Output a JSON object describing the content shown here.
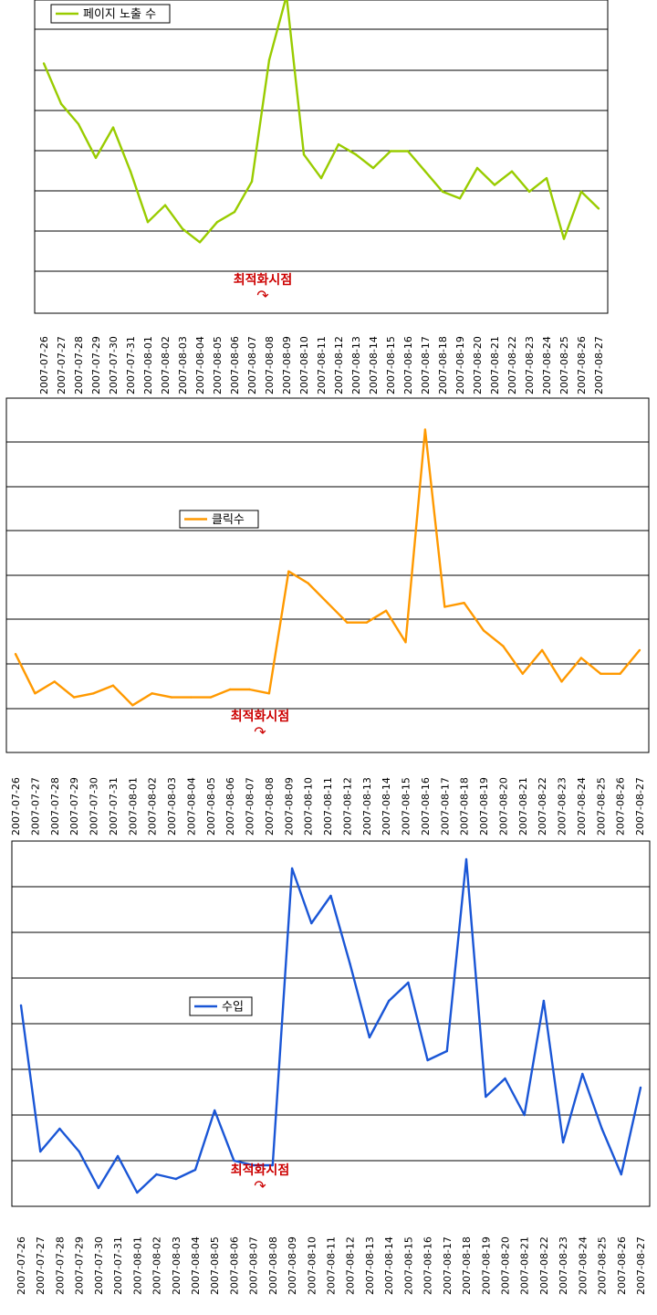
{
  "chart_data": [
    {
      "type": "line",
      "title": "",
      "xlabel": "",
      "ylabel": "",
      "grid": true,
      "legend_position": "top-left",
      "series": [
        {
          "name": "페이지 노출 수",
          "color": "#99cc00",
          "values": [
            7.4,
            6.2,
            5.6,
            4.6,
            5.5,
            4.2,
            2.7,
            3.2,
            2.5,
            2.1,
            2.7,
            3.0,
            3.9,
            7.5,
            9.4,
            4.7,
            4.0,
            5.0,
            4.7,
            4.3,
            4.8,
            4.8,
            4.2,
            3.6,
            3.4,
            4.3,
            3.8,
            4.2,
            3.6,
            4.0,
            2.2,
            3.6,
            3.1
          ]
        }
      ],
      "annotation": {
        "text": "최적화시점",
        "arrow": "↷",
        "at_category": "2007-08-08"
      },
      "categories": [
        "2007-07-26",
        "2007-07-27",
        "2007-07-28",
        "2007-07-29",
        "2007-07-30",
        "2007-07-31",
        "2007-08-01",
        "2007-08-02",
        "2007-08-03",
        "2007-08-04",
        "2007-08-05",
        "2007-08-06",
        "2007-08-07",
        "2007-08-08",
        "2007-08-09",
        "2007-08-10",
        "2007-08-11",
        "2007-08-12",
        "2007-08-13",
        "2007-08-14",
        "2007-08-15",
        "2007-08-16",
        "2007-08-17",
        "2007-08-18",
        "2007-08-19",
        "2007-08-20",
        "2007-08-21",
        "2007-08-22",
        "2007-08-23",
        "2007-08-24",
        "2007-08-25",
        "2007-08-26",
        "2007-08-27"
      ],
      "ylim": [
        0,
        9.6
      ]
    },
    {
      "type": "line",
      "title": "",
      "xlabel": "",
      "ylabel": "",
      "grid": true,
      "legend_position": "middle-left",
      "series": [
        {
          "name": "클릭수",
          "color": "#ff9900",
          "values": [
            1.5,
            0.5,
            0.8,
            0.4,
            0.5,
            0.7,
            0.2,
            0.5,
            0.4,
            0.4,
            0.4,
            0.6,
            0.6,
            0.5,
            3.6,
            3.3,
            2.8,
            2.3,
            2.3,
            2.6,
            1.8,
            7.2,
            2.7,
            2.8,
            2.1,
            1.7,
            1.0,
            1.6,
            0.8,
            1.4,
            1.0,
            1.0,
            1.6
          ]
        }
      ],
      "annotation": {
        "text": "최적화시점",
        "arrow": "↷",
        "at_category": "2007-08-08"
      },
      "categories": [
        "2007-07-26",
        "2007-07-27",
        "2007-07-28",
        "2007-07-29",
        "2007-07-30",
        "2007-07-31",
        "2007-08-01",
        "2007-08-02",
        "2007-08-03",
        "2007-08-04",
        "2007-08-05",
        "2007-08-06",
        "2007-08-07",
        "2007-08-08",
        "2007-08-09",
        "2007-08-10",
        "2007-08-11",
        "2007-08-12",
        "2007-08-13",
        "2007-08-14",
        "2007-08-15",
        "2007-08-16",
        "2007-08-17",
        "2007-08-18",
        "2007-08-19",
        "2007-08-20",
        "2007-08-21",
        "2007-08-22",
        "2007-08-23",
        "2007-08-24",
        "2007-08-25",
        "2007-08-26",
        "2007-08-27"
      ],
      "ylim": [
        -1,
        8
      ]
    },
    {
      "type": "line",
      "title": "",
      "xlabel": "",
      "ylabel": "",
      "grid": true,
      "legend_position": "middle-left",
      "series": [
        {
          "name": "수입",
          "color": "#1a56d6",
          "values": [
            3.4,
            0.2,
            0.7,
            0.2,
            -0.6,
            0.1,
            -0.7,
            -0.3,
            -0.4,
            -0.2,
            1.1,
            0.0,
            -0.1,
            -0.1,
            6.4,
            5.2,
            5.8,
            4.3,
            2.7,
            3.5,
            3.9,
            2.2,
            2.4,
            6.6,
            1.4,
            1.8,
            1.0,
            3.5,
            0.4,
            1.9,
            0.7,
            -0.3,
            1.6
          ]
        }
      ],
      "annotation": {
        "text": "최적화시점",
        "arrow": "↷",
        "at_category": "2007-08-08"
      },
      "categories": [
        "2007-07-26",
        "2007-07-27",
        "2007-07-28",
        "2007-07-29",
        "2007-07-30",
        "2007-07-31",
        "2007-08-01",
        "2007-08-02",
        "2007-08-03",
        "2007-08-04",
        "2007-08-05",
        "2007-08-06",
        "2007-08-07",
        "2007-08-08",
        "2007-08-09",
        "2007-08-10",
        "2007-08-11",
        "2007-08-12",
        "2007-08-13",
        "2007-08-14",
        "2007-08-15",
        "2007-08-16",
        "2007-08-17",
        "2007-08-18",
        "2007-08-19",
        "2007-08-20",
        "2007-08-21",
        "2007-08-22",
        "2007-08-23",
        "2007-08-24",
        "2007-08-25",
        "2007-08-26",
        "2007-08-27"
      ],
      "ylim": [
        -1,
        7
      ]
    }
  ]
}
